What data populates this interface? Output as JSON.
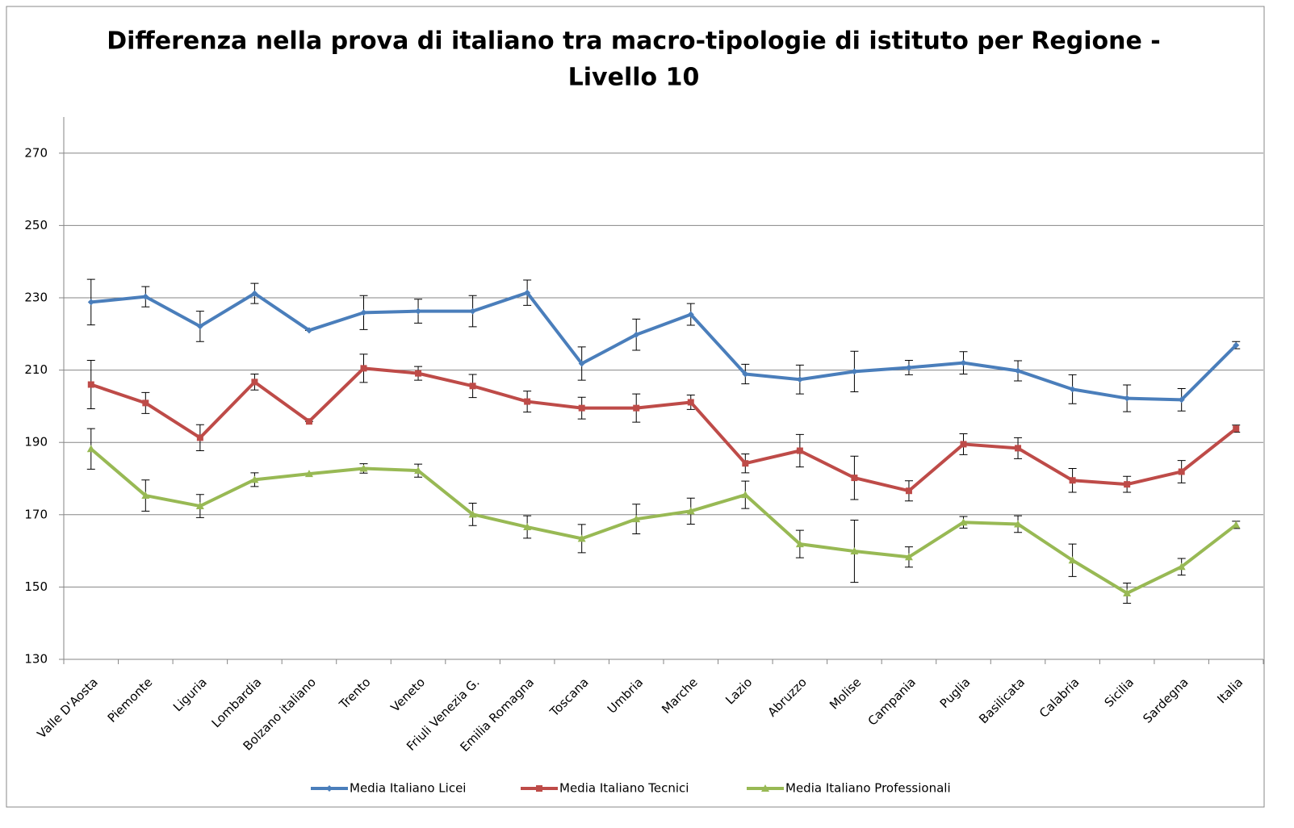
{
  "chart_data": {
    "type": "line",
    "title": [
      "Differenza nella prova di italiano tra macro-tipologie di istituto per Regione -",
      "Livello 10"
    ],
    "categories": [
      "Valle D'Aosta",
      "Piemonte",
      "Liguria",
      "Lombardia",
      "Bolzano italiano",
      "Trento",
      "Veneto",
      "Friuli Venezia G.",
      "Emilia Romagna",
      "Toscana",
      "Umbria",
      "Marche",
      "Lazio",
      "Abruzzo",
      "Molise",
      "Campania",
      "Puglia",
      "Basilicata",
      "Calabria",
      "Sicilia",
      "Sardegna",
      "Italia"
    ],
    "series": [
      {
        "name": "Media Italiano Licei",
        "color": "#4a7ebb",
        "marker": "diamond",
        "values": [
          228.8,
          230.3,
          222.1,
          231.2,
          221.0,
          225.9,
          226.3,
          226.3,
          231.4,
          211.8,
          219.8,
          225.4,
          208.9,
          207.4,
          209.6,
          210.7,
          212.0,
          209.8,
          204.7,
          202.2,
          201.8,
          216.9
        ],
        "errors": [
          6.3,
          2.8,
          4.2,
          2.8,
          0,
          4.7,
          3.3,
          4.3,
          3.5,
          4.6,
          4.3,
          3.0,
          2.7,
          4.0,
          5.6,
          2.0,
          3.1,
          2.8,
          4.0,
          3.7,
          3.1,
          1.0
        ]
      },
      {
        "name": "Media Italiano Tecnici",
        "color": "#be4b48",
        "marker": "square",
        "values": [
          206.0,
          200.9,
          191.3,
          206.7,
          195.8,
          210.5,
          209.1,
          205.6,
          201.3,
          199.5,
          199.5,
          201.1,
          184.2,
          187.7,
          180.2,
          176.6,
          189.5,
          188.4,
          179.5,
          178.4,
          181.9,
          193.8
        ],
        "errors": [
          6.7,
          2.9,
          3.6,
          2.2,
          0,
          3.9,
          1.9,
          3.2,
          2.9,
          3.0,
          3.9,
          2.0,
          2.6,
          4.5,
          6.0,
          2.8,
          2.9,
          2.9,
          3.3,
          2.2,
          3.1,
          1.0
        ]
      },
      {
        "name": "Media Italiano Professionali",
        "color": "#98b954",
        "marker": "triangle",
        "values": [
          188.2,
          175.3,
          172.4,
          179.7,
          181.3,
          182.8,
          182.2,
          170.1,
          166.6,
          163.4,
          168.8,
          171.0,
          175.5,
          161.9,
          159.9,
          158.3,
          167.9,
          167.4,
          157.4,
          148.3,
          155.6,
          167.2
        ],
        "errors": [
          5.6,
          4.3,
          3.2,
          1.9,
          0,
          1.3,
          1.8,
          3.1,
          3.1,
          3.9,
          4.1,
          3.6,
          3.8,
          3.8,
          8.6,
          2.8,
          1.6,
          2.3,
          4.5,
          2.8,
          2.3,
          1.0
        ]
      }
    ],
    "ylim": [
      130,
      280
    ],
    "yticks": [
      130,
      150,
      170,
      190,
      210,
      230,
      250,
      270
    ],
    "grid": true,
    "legend": "bottom"
  }
}
